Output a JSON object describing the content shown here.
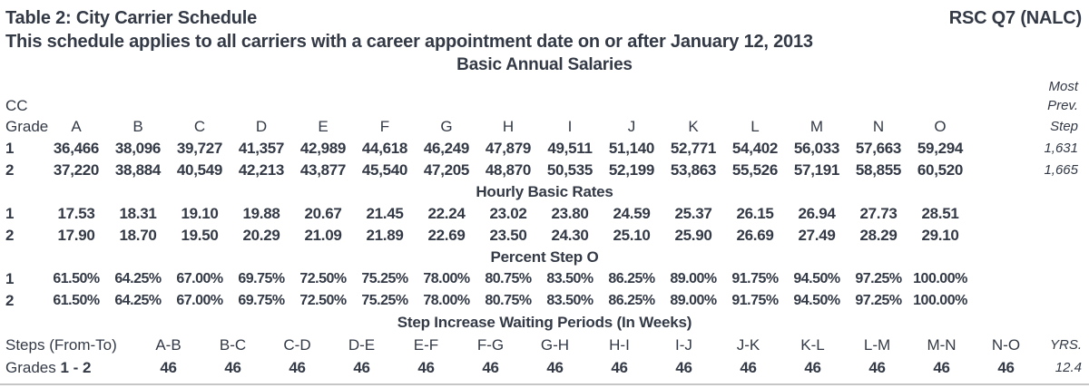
{
  "doc": {
    "title": "Table 2: City Carrier Schedule",
    "code": "RSC Q7 (NALC)",
    "subtitle": "This schedule applies to all carriers with a career appointment date on or after January 12, 2013",
    "annual_title": "Basic Annual Salaries",
    "hourly_title": "Hourly Basic Rates",
    "percent_title": "Percent Step O",
    "waiting_title": "Step Increase Waiting Periods (In Weeks)"
  },
  "grade_col": {
    "line1": "CC",
    "line2": "Grade"
  },
  "most_col": {
    "line1": "Most",
    "line2": "Prev.",
    "line3": "Step"
  },
  "steps": [
    "A",
    "B",
    "C",
    "D",
    "E",
    "F",
    "G",
    "H",
    "I",
    "J",
    "K",
    "L",
    "M",
    "N",
    "O"
  ],
  "annual": {
    "rows": [
      {
        "grade": "1",
        "values": [
          "36,466",
          "38,096",
          "39,727",
          "41,357",
          "42,989",
          "44,618",
          "46,249",
          "47,879",
          "49,511",
          "51,140",
          "52,771",
          "54,402",
          "56,033",
          "57,663",
          "59,294"
        ],
        "increment": "1,631"
      },
      {
        "grade": "2",
        "values": [
          "37,220",
          "38,884",
          "40,549",
          "42,213",
          "43,877",
          "45,540",
          "47,205",
          "48,870",
          "50,535",
          "52,199",
          "53,863",
          "55,526",
          "57,191",
          "58,855",
          "60,520"
        ],
        "increment": "1,665"
      }
    ]
  },
  "hourly": {
    "rows": [
      {
        "grade": "1",
        "values": [
          "17.53",
          "18.31",
          "19.10",
          "19.88",
          "20.67",
          "21.45",
          "22.24",
          "23.02",
          "23.80",
          "24.59",
          "25.37",
          "26.15",
          "26.94",
          "27.73",
          "28.51"
        ]
      },
      {
        "grade": "2",
        "values": [
          "17.90",
          "18.70",
          "19.50",
          "20.29",
          "21.09",
          "21.89",
          "22.69",
          "23.50",
          "24.30",
          "25.10",
          "25.90",
          "26.69",
          "27.49",
          "28.29",
          "29.10"
        ]
      }
    ]
  },
  "percent": {
    "rows": [
      {
        "grade": "1",
        "values": [
          "61.50%",
          "64.25%",
          "67.00%",
          "69.75%",
          "72.50%",
          "75.25%",
          "78.00%",
          "80.75%",
          "83.50%",
          "86.25%",
          "89.00%",
          "91.75%",
          "94.50%",
          "97.25%",
          "100.00%"
        ]
      },
      {
        "grade": "2",
        "values": [
          "61.50%",
          "64.25%",
          "67.00%",
          "69.75%",
          "72.50%",
          "75.25%",
          "78.00%",
          "80.75%",
          "83.50%",
          "86.25%",
          "89.00%",
          "91.75%",
          "94.50%",
          "97.25%",
          "100.00%"
        ]
      }
    ]
  },
  "waiting": {
    "col_label": "Steps (From-To)",
    "pairs": [
      "A-B",
      "B-C",
      "C-D",
      "D-E",
      "E-F",
      "F-G",
      "G-H",
      "H-I",
      "I-J",
      "J-K",
      "K-L",
      "L-M",
      "M-N",
      "N-O"
    ],
    "yrs_label": "YRS.",
    "row_label_prefix": "Grades ",
    "row_label_range": "1 - 2",
    "weeks": [
      "46",
      "46",
      "46",
      "46",
      "46",
      "46",
      "46",
      "46",
      "46",
      "46",
      "46",
      "46",
      "46",
      "46"
    ],
    "yrs_value": "12.4"
  },
  "colors": {
    "text": "#333a46",
    "rule": "#c6c6c6"
  }
}
